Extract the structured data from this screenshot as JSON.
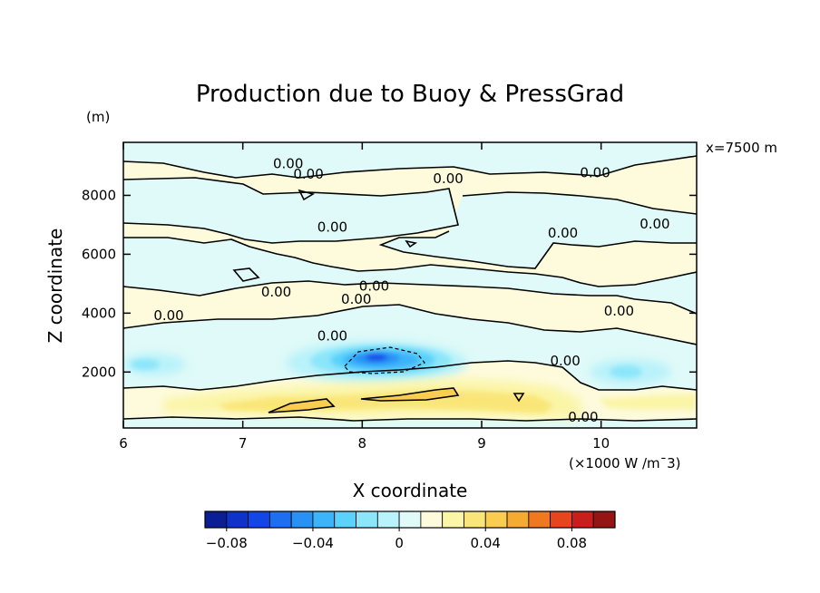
{
  "chart_data": {
    "type": "heatmap",
    "title": "Production due to Buoy & PressGrad",
    "xlabel": "X coordinate",
    "ylabel": "Z coordinate",
    "y_unit": "(m)",
    "x_unit_note": "(×1000 W /m¯3)",
    "side_note": "x=7500 m",
    "x_range": [
      6,
      10.8
    ],
    "y_range": [
      100,
      9800
    ],
    "x_ticks": [
      6,
      7,
      8,
      9,
      10
    ],
    "x_tick_labels": [
      "6",
      "7",
      "8",
      "9",
      "10"
    ],
    "y_ticks": [
      2000,
      4000,
      6000,
      8000
    ],
    "y_tick_labels": [
      "2000",
      "4000",
      "6000",
      "8000"
    ],
    "contour_labels": [
      {
        "text": "0.00",
        "x": 7.38,
        "y": 8950
      },
      {
        "text": "0.00",
        "x": 7.55,
        "y": 8600
      },
      {
        "text": "0.00",
        "x": 8.72,
        "y": 8450
      },
      {
        "text": "0.00",
        "x": 9.95,
        "y": 8650
      },
      {
        "text": "0.00",
        "x": 7.75,
        "y": 6800
      },
      {
        "text": "0.00",
        "x": 9.68,
        "y": 6600
      },
      {
        "text": "0.00",
        "x": 10.45,
        "y": 6900
      },
      {
        "text": "0.00",
        "x": 7.28,
        "y": 4600
      },
      {
        "text": "0.00",
        "x": 8.1,
        "y": 4800
      },
      {
        "text": "0.00",
        "x": 7.95,
        "y": 4350
      },
      {
        "text": "0.00",
        "x": 6.38,
        "y": 3800
      },
      {
        "text": "0.00",
        "x": 10.15,
        "y": 3950
      },
      {
        "text": "0.00",
        "x": 7.75,
        "y": 3100
      },
      {
        "text": "0.00",
        "x": 9.7,
        "y": 2250
      },
      {
        "text": "0.00",
        "x": 9.85,
        "y": 350
      }
    ],
    "colorbar": {
      "levels": [
        -0.09,
        -0.08,
        -0.07,
        -0.06,
        -0.05,
        -0.04,
        -0.03,
        -0.02,
        -0.01,
        0,
        0.01,
        0.02,
        0.03,
        0.04,
        0.05,
        0.06,
        0.07,
        0.08,
        0.09
      ],
      "colors": [
        "#0a1e96",
        "#0f32c8",
        "#1446e6",
        "#1e6ef0",
        "#2891f5",
        "#3cb4fa",
        "#5ad2fa",
        "#8ce6fa",
        "#b9f2fa",
        "#dffaf8",
        "#fdfbdc",
        "#fbf5a8",
        "#fae678",
        "#f8cd50",
        "#f5aa32",
        "#f0781e",
        "#e6461e",
        "#c81e1e",
        "#961414"
      ],
      "tick_values": [
        -0.08,
        -0.04,
        0,
        0.04,
        0.08
      ],
      "tick_labels": [
        "−0.08",
        "−0.04",
        "0",
        "0.04",
        "0.08"
      ]
    }
  }
}
